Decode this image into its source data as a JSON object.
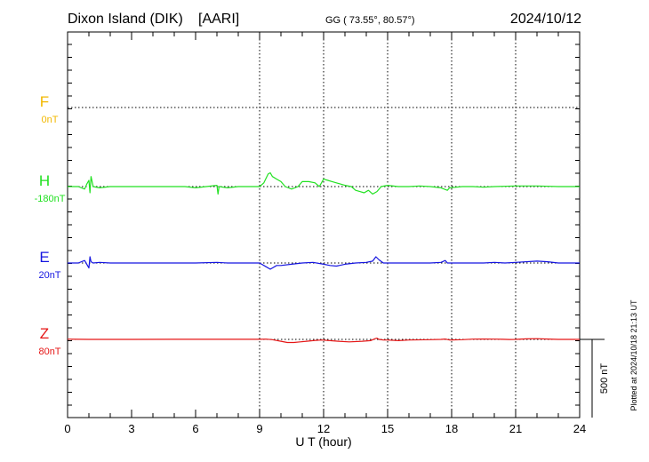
{
  "header": {
    "station": "Dixon Island (DIK)",
    "institute": "[AARI]",
    "coords": "GG ( 73.55°,  80.57°)",
    "date": "2024/10/12"
  },
  "footer": {
    "xlabel": "U T (hour)",
    "plotted": "Plotted at 2024/10/18 21:13 UT",
    "scale_label": "500 nT"
  },
  "colors": {
    "F": "#f2b800",
    "H": "#22e122",
    "E": "#1515e0",
    "Z": "#e51515",
    "axis": "#000000"
  },
  "chart_data": {
    "type": "line",
    "title": "Dixon Island (DIK)  [AARI]",
    "xlabel": "U T (hour)",
    "ylabel": "",
    "xlim": [
      0,
      24
    ],
    "x_ticks": [
      0,
      3,
      6,
      9,
      12,
      15,
      18,
      21,
      24
    ],
    "y_units": "nT",
    "scale_bar_nT": 500,
    "grid": "dotted baseline per component",
    "series": [
      {
        "name": "F",
        "offset_label": "0nT",
        "points": []
      },
      {
        "name": "H",
        "offset_label": "-180nT",
        "points": [
          [
            0,
            0
          ],
          [
            0.5,
            0
          ],
          [
            0.8,
            -20
          ],
          [
            0.9,
            20
          ],
          [
            1.0,
            50
          ],
          [
            1.05,
            -50
          ],
          [
            1.1,
            80
          ],
          [
            1.2,
            0
          ],
          [
            1.5,
            -10
          ],
          [
            2,
            0
          ],
          [
            3,
            0
          ],
          [
            4,
            0
          ],
          [
            5,
            0
          ],
          [
            5.5,
            0
          ],
          [
            6,
            -10
          ],
          [
            6.5,
            0
          ],
          [
            7,
            10
          ],
          [
            7.05,
            -60
          ],
          [
            7.1,
            0
          ],
          [
            7.5,
            -10
          ],
          [
            8,
            0
          ],
          [
            8.5,
            0
          ],
          [
            9.0,
            0
          ],
          [
            9.2,
            30
          ],
          [
            9.4,
            100
          ],
          [
            9.5,
            110
          ],
          [
            9.6,
            80
          ],
          [
            9.8,
            60
          ],
          [
            10,
            40
          ],
          [
            10.2,
            0
          ],
          [
            10.5,
            -20
          ],
          [
            10.8,
            0
          ],
          [
            11,
            40
          ],
          [
            11.3,
            40
          ],
          [
            11.6,
            30
          ],
          [
            11.8,
            0
          ],
          [
            12,
            60
          ],
          [
            12.2,
            50
          ],
          [
            12.4,
            40
          ],
          [
            12.8,
            20
          ],
          [
            13,
            10
          ],
          [
            13.3,
            0
          ],
          [
            13.5,
            -30
          ],
          [
            13.7,
            -40
          ],
          [
            13.9,
            -50
          ],
          [
            14.1,
            -30
          ],
          [
            14.3,
            -60
          ],
          [
            14.5,
            -40
          ],
          [
            14.7,
            0
          ],
          [
            15,
            10
          ],
          [
            15.5,
            0
          ],
          [
            16,
            0
          ],
          [
            16.5,
            5
          ],
          [
            17,
            0
          ],
          [
            17.5,
            -10
          ],
          [
            17.8,
            -30
          ],
          [
            17.9,
            -10
          ],
          [
            18.5,
            0
          ],
          [
            19,
            0
          ],
          [
            19.5,
            -5
          ],
          [
            20,
            0
          ],
          [
            21,
            5
          ],
          [
            22,
            5
          ],
          [
            23,
            0
          ],
          [
            24,
            0
          ]
        ]
      },
      {
        "name": "E",
        "offset_label": "20nT",
        "points": [
          [
            0,
            0
          ],
          [
            0.5,
            0
          ],
          [
            0.8,
            20
          ],
          [
            0.9,
            -10
          ],
          [
            1.0,
            -40
          ],
          [
            1.05,
            50
          ],
          [
            1.1,
            10
          ],
          [
            1.2,
            0
          ],
          [
            1.5,
            5
          ],
          [
            2,
            0
          ],
          [
            3,
            0
          ],
          [
            4,
            0
          ],
          [
            5,
            0
          ],
          [
            6,
            0
          ],
          [
            7,
            5
          ],
          [
            7.5,
            0
          ],
          [
            8,
            0
          ],
          [
            9,
            0
          ],
          [
            9.3,
            -30
          ],
          [
            9.5,
            -50
          ],
          [
            9.6,
            -40
          ],
          [
            9.8,
            -20
          ],
          [
            10,
            -20
          ],
          [
            10.5,
            -10
          ],
          [
            11,
            0
          ],
          [
            11.5,
            5
          ],
          [
            12,
            -10
          ],
          [
            12.3,
            -20
          ],
          [
            12.6,
            -25
          ],
          [
            13,
            -10
          ],
          [
            13.5,
            0
          ],
          [
            14,
            5
          ],
          [
            14.3,
            15
          ],
          [
            14.45,
            50
          ],
          [
            14.6,
            25
          ],
          [
            14.8,
            0
          ],
          [
            15,
            0
          ],
          [
            16,
            0
          ],
          [
            17,
            0
          ],
          [
            17.5,
            5
          ],
          [
            17.7,
            20
          ],
          [
            17.8,
            0
          ],
          [
            18.5,
            0
          ],
          [
            19.5,
            0
          ],
          [
            20,
            5
          ],
          [
            20.5,
            0
          ],
          [
            21,
            5
          ],
          [
            22,
            15
          ],
          [
            22.5,
            10
          ],
          [
            23,
            0
          ],
          [
            23.5,
            0
          ],
          [
            24,
            0
          ]
        ]
      },
      {
        "name": "Z",
        "offset_label": "80nT",
        "points": [
          [
            0,
            2
          ],
          [
            0.5,
            1
          ],
          [
            1,
            0
          ],
          [
            2,
            0
          ],
          [
            3,
            0
          ],
          [
            5,
            1
          ],
          [
            7,
            1
          ],
          [
            9,
            1
          ],
          [
            9.3,
            2
          ],
          [
            9.6,
            -2
          ],
          [
            10,
            -15
          ],
          [
            10.3,
            -25
          ],
          [
            10.6,
            -25
          ],
          [
            10.9,
            -20
          ],
          [
            11.2,
            -15
          ],
          [
            11.5,
            -10
          ],
          [
            11.9,
            -5
          ],
          [
            12.3,
            -10
          ],
          [
            12.7,
            -15
          ],
          [
            13.2,
            -20
          ],
          [
            13.8,
            -15
          ],
          [
            14.2,
            -10
          ],
          [
            14.4,
            5
          ],
          [
            14.5,
            10
          ],
          [
            14.6,
            0
          ],
          [
            14.8,
            -5
          ],
          [
            15,
            -5
          ],
          [
            15.5,
            -10
          ],
          [
            16,
            -5
          ],
          [
            17,
            -2
          ],
          [
            17.5,
            0
          ],
          [
            17.7,
            3
          ],
          [
            17.9,
            -5
          ],
          [
            18.5,
            -2
          ],
          [
            19,
            2
          ],
          [
            19.5,
            3
          ],
          [
            20,
            2
          ],
          [
            20.4,
            1
          ],
          [
            20.7,
            -1
          ],
          [
            21,
            0
          ],
          [
            21.5,
            4
          ],
          [
            22,
            6
          ],
          [
            22.5,
            3
          ],
          [
            23,
            0
          ],
          [
            23.5,
            0
          ],
          [
            24,
            0
          ]
        ]
      }
    ]
  }
}
